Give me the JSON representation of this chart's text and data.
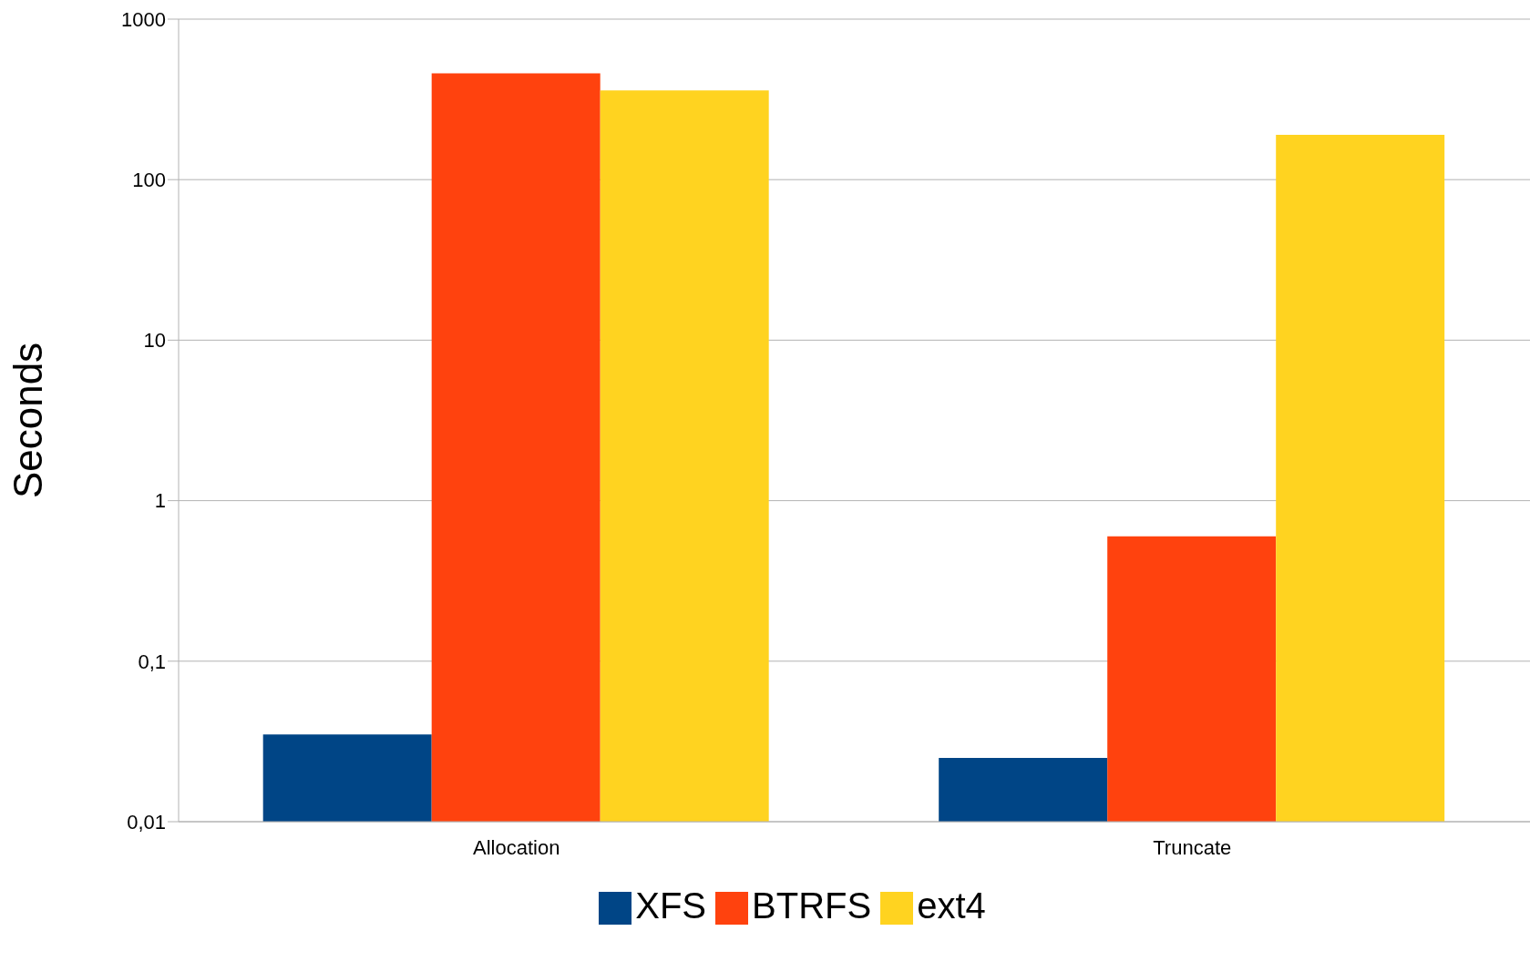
{
  "chart_data": {
    "type": "bar",
    "ylabel": "Seconds",
    "categories": [
      "Allocation",
      "Truncate"
    ],
    "series": [
      {
        "name": "XFS",
        "color": "#004586",
        "values": [
          0.035,
          0.025
        ]
      },
      {
        "name": "BTRFS",
        "color": "#ff420e",
        "values": [
          460,
          0.6
        ]
      },
      {
        "name": "ext4",
        "color": "#ffd320",
        "values": [
          360,
          190
        ]
      }
    ],
    "log": true,
    "ylim": [
      0.01,
      1000
    ],
    "yticks": [
      {
        "value": 0.01,
        "label": "0,01"
      },
      {
        "value": 0.1,
        "label": "0,1"
      },
      1,
      10,
      100,
      1000
    ],
    "grid": "y",
    "legend": "bottom"
  }
}
